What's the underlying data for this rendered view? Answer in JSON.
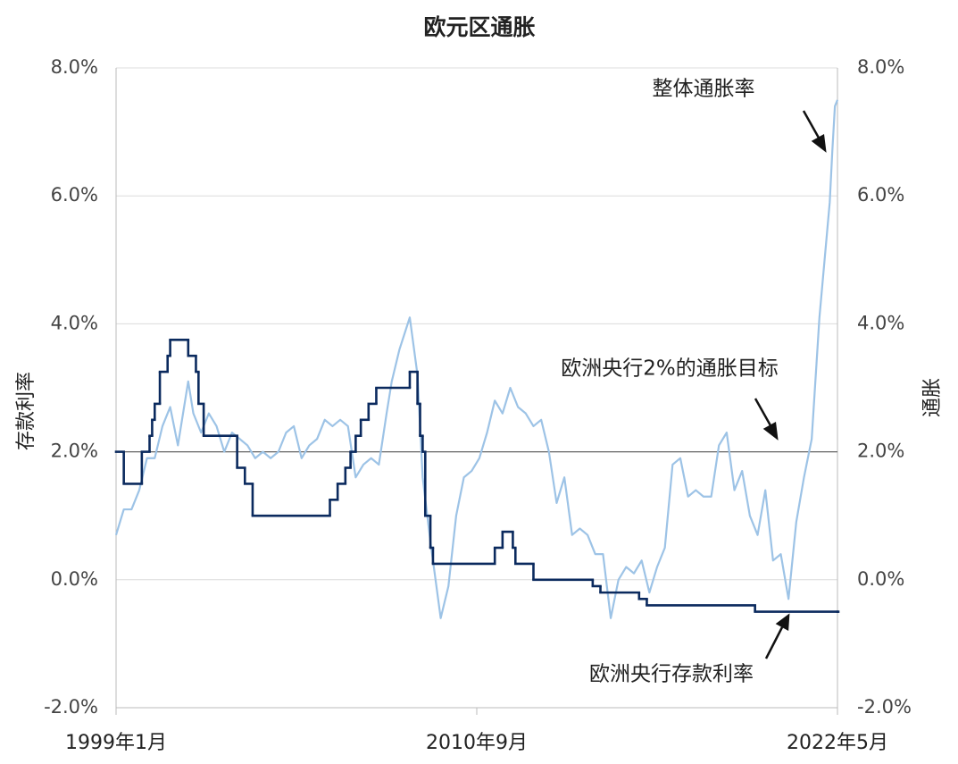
{
  "chart_data": {
    "type": "line",
    "title": "欧元区通胀",
    "y_label": "存款利率",
    "y2_label": "通胀",
    "xlim": [
      "1999-01",
      "2022-05"
    ],
    "xticks": [
      {
        "value": "1999-01",
        "label": "1999年1月"
      },
      {
        "value": "2010-09",
        "label": "2010年9月"
      },
      {
        "value": "2022-05",
        "label": "2022年5月"
      }
    ],
    "ylim": [
      -2,
      8
    ],
    "yticks": [
      {
        "value": -2,
        "label": "-2.0%"
      },
      {
        "value": 0,
        "label": "0.0%"
      },
      {
        "value": 2,
        "label": "2.0%"
      },
      {
        "value": 4,
        "label": "4.0%"
      },
      {
        "value": 6,
        "label": "6.0%"
      },
      {
        "value": 8,
        "label": "8.0%"
      }
    ],
    "y2lim": [
      -2,
      8
    ],
    "y2ticks": [
      {
        "value": -2,
        "label": "-2.0%"
      },
      {
        "value": 0,
        "label": "0.0%"
      },
      {
        "value": 2,
        "label": "2.0%"
      },
      {
        "value": 4,
        "label": "4.0%"
      },
      {
        "value": 6,
        "label": "6.0%"
      },
      {
        "value": 8,
        "label": "8.0%"
      }
    ],
    "grid": true,
    "hline": 2,
    "series": [
      {
        "name": "整体通胀率",
        "axis": "y2",
        "color": "#9dc3e6",
        "step": false,
        "x": [
          "1999-01",
          "1999-04",
          "1999-07",
          "1999-10",
          "2000-01",
          "2000-04",
          "2000-07",
          "2000-10",
          "2001-01",
          "2001-05",
          "2001-07",
          "2001-10",
          "2002-01",
          "2002-04",
          "2002-07",
          "2002-10",
          "2003-01",
          "2003-04",
          "2003-07",
          "2003-10",
          "2004-01",
          "2004-04",
          "2004-07",
          "2004-10",
          "2005-01",
          "2005-04",
          "2005-07",
          "2005-10",
          "2006-01",
          "2006-04",
          "2006-07",
          "2006-10",
          "2007-01",
          "2007-04",
          "2007-07",
          "2007-10",
          "2007-12",
          "2008-03",
          "2008-07",
          "2008-10",
          "2008-12",
          "2009-03",
          "2009-07",
          "2009-10",
          "2010-01",
          "2010-04",
          "2010-07",
          "2010-10",
          "2011-01",
          "2011-04",
          "2011-07",
          "2011-10",
          "2012-01",
          "2012-04",
          "2012-07",
          "2012-10",
          "2013-01",
          "2013-04",
          "2013-07",
          "2013-10",
          "2014-01",
          "2014-04",
          "2014-07",
          "2014-10",
          "2015-01",
          "2015-04",
          "2015-07",
          "2015-10",
          "2016-01",
          "2016-04",
          "2016-07",
          "2016-10",
          "2017-01",
          "2017-04",
          "2017-07",
          "2017-10",
          "2018-01",
          "2018-04",
          "2018-07",
          "2018-10",
          "2019-01",
          "2019-04",
          "2019-07",
          "2019-10",
          "2020-01",
          "2020-04",
          "2020-07",
          "2020-10",
          "2021-01",
          "2021-04",
          "2021-07",
          "2021-10",
          "2021-12",
          "2022-02",
          "2022-03",
          "2022-04",
          "2022-05"
        ],
        "values": [
          0.7,
          1.1,
          1.1,
          1.4,
          1.9,
          1.9,
          2.4,
          2.7,
          2.1,
          3.1,
          2.6,
          2.3,
          2.6,
          2.4,
          2.0,
          2.3,
          2.2,
          2.1,
          1.9,
          2.0,
          1.9,
          2.0,
          2.3,
          2.4,
          1.9,
          2.1,
          2.2,
          2.5,
          2.4,
          2.5,
          2.4,
          1.6,
          1.8,
          1.9,
          1.8,
          2.6,
          3.1,
          3.6,
          4.1,
          3.2,
          1.6,
          0.6,
          -0.6,
          -0.1,
          1.0,
          1.6,
          1.7,
          1.9,
          2.3,
          2.8,
          2.6,
          3.0,
          2.7,
          2.6,
          2.4,
          2.5,
          2.0,
          1.2,
          1.6,
          0.7,
          0.8,
          0.7,
          0.4,
          0.4,
          -0.6,
          0.0,
          0.2,
          0.1,
          0.3,
          -0.2,
          0.2,
          0.5,
          1.8,
          1.9,
          1.3,
          1.4,
          1.3,
          1.3,
          2.1,
          2.3,
          1.4,
          1.7,
          1.0,
          0.7,
          1.4,
          0.3,
          0.4,
          -0.3,
          0.9,
          1.6,
          2.2,
          4.1,
          5.0,
          5.9,
          6.7,
          7.4,
          7.5
        ]
      },
      {
        "name": "欧洲央行存款利率",
        "axis": "y",
        "color": "#0b2a5e",
        "step": true,
        "x": [
          "1999-01",
          "1999-04",
          "1999-11",
          "2000-02",
          "2000-03",
          "2000-04",
          "2000-06",
          "2000-09",
          "2000-10",
          "2001-05",
          "2001-08",
          "2001-09",
          "2001-11",
          "2002-12",
          "2003-03",
          "2003-06",
          "2005-12",
          "2006-03",
          "2006-06",
          "2006-08",
          "2006-10",
          "2006-12",
          "2007-03",
          "2007-06",
          "2008-07",
          "2008-10",
          "2008-11",
          "2008-12",
          "2009-01",
          "2009-03",
          "2009-04",
          "2011-04",
          "2011-07",
          "2011-11",
          "2011-12",
          "2012-07",
          "2014-06",
          "2014-09",
          "2015-12",
          "2016-03",
          "2019-09",
          "2022-05"
        ],
        "values": [
          2.0,
          1.5,
          2.0,
          2.25,
          2.5,
          2.75,
          3.25,
          3.5,
          3.75,
          3.5,
          3.25,
          2.75,
          2.25,
          1.75,
          1.5,
          1.0,
          1.25,
          1.5,
          1.75,
          2.0,
          2.25,
          2.5,
          2.75,
          3.0,
          3.25,
          2.75,
          2.25,
          2.0,
          1.0,
          0.5,
          0.25,
          0.5,
          0.75,
          0.5,
          0.25,
          0.0,
          -0.1,
          -0.2,
          -0.3,
          -0.4,
          -0.5,
          -0.5
        ]
      }
    ],
    "annotations": [
      "整体通胀率",
      "欧洲央行2%的通胀目标",
      "欧洲央行存款利率"
    ]
  }
}
